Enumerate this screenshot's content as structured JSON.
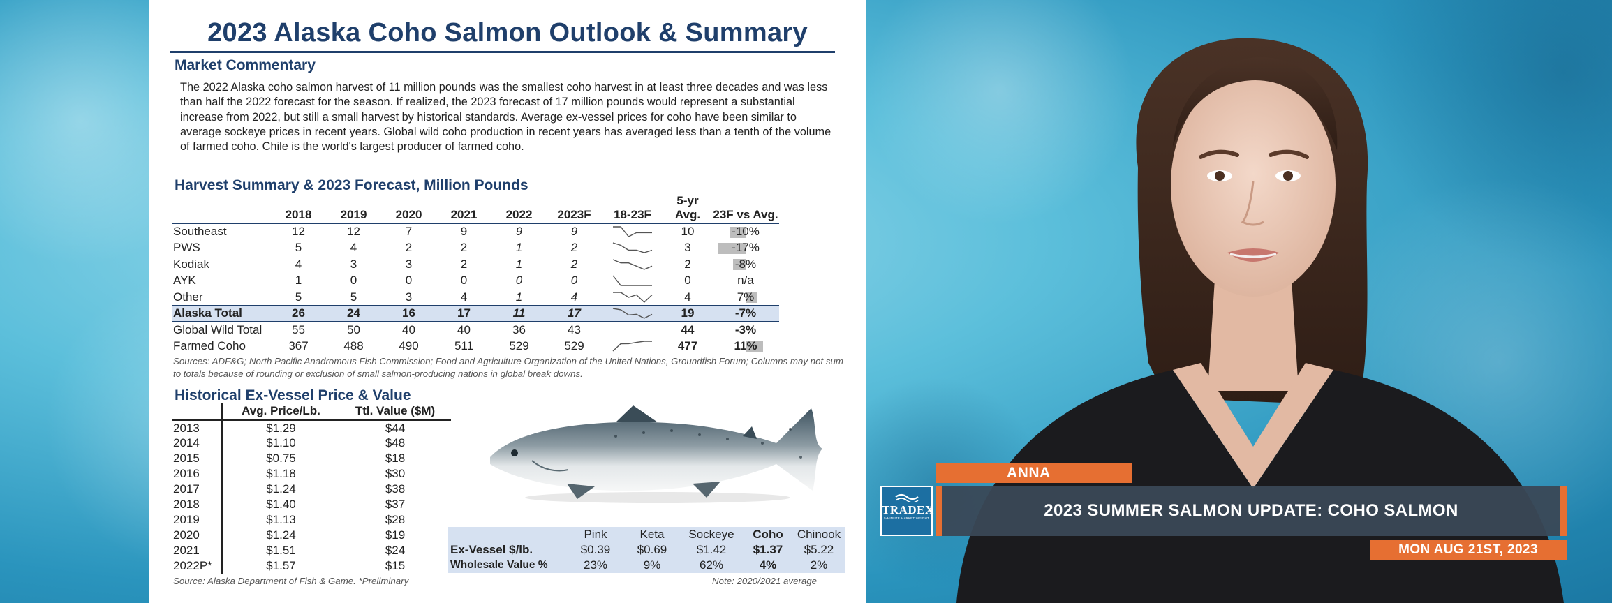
{
  "slide": {
    "title": "2023 Alaska Coho Salmon Outlook & Summary",
    "market_heading": "Market Commentary",
    "commentary": "The 2022 Alaska coho salmon harvest of 11 million pounds was the smallest coho harvest in at least three decades and was less than half the 2022 forecast for the season. If realized, the 2023 forecast of 17 million pounds would represent a substantial increase from 2022, but still a small harvest by historical standards. Average ex-vessel prices for coho have been similar to average sockeye prices in recent years. Global wild coho production in recent years has averaged less than a tenth of the volume of farmed coho. Chile is the world's largest producer of farmed coho.",
    "harvest_heading": "Harvest Summary & 2023 Forecast, Million Pounds",
    "harvest_columns": [
      "2018",
      "2019",
      "2020",
      "2021",
      "2022",
      "2023F",
      "18-23F",
      "5-yr Avg.",
      "23F vs Avg."
    ],
    "harvest_rows": [
      {
        "region": "Southeast",
        "values": [
          "12",
          "12",
          "7",
          "9",
          "9",
          "9"
        ],
        "spark": [
          12,
          12,
          7,
          9,
          9,
          9
        ],
        "avg": "10",
        "vs": "-10%",
        "vs_fraction": -0.1
      },
      {
        "region": "PWS",
        "values": [
          "5",
          "4",
          "2",
          "2",
          "1",
          "2"
        ],
        "spark": [
          5,
          4,
          2,
          2,
          1,
          2
        ],
        "avg": "3",
        "vs": "-17%",
        "vs_fraction": -0.17
      },
      {
        "region": "Kodiak",
        "values": [
          "4",
          "3",
          "3",
          "2",
          "1",
          "2"
        ],
        "spark": [
          4,
          3,
          3,
          2,
          1,
          2
        ],
        "avg": "2",
        "vs": "-8%",
        "vs_fraction": -0.08
      },
      {
        "region": "AYK",
        "values": [
          "1",
          "0",
          "0",
          "0",
          "0",
          "0"
        ],
        "spark": [
          1,
          0,
          0,
          0,
          0,
          0
        ],
        "avg": "0",
        "vs": "n/a",
        "vs_fraction": 0
      },
      {
        "region": "Other",
        "values": [
          "5",
          "5",
          "3",
          "4",
          "1",
          "4"
        ],
        "spark": [
          5,
          5,
          3,
          4,
          1,
          4
        ],
        "avg": "4",
        "vs": "7%",
        "vs_fraction": 0.07
      },
      {
        "region": "Alaska Total",
        "values": [
          "26",
          "24",
          "16",
          "17",
          "11",
          "17"
        ],
        "spark": [
          26,
          24,
          16,
          17,
          11,
          17
        ],
        "avg": "19",
        "vs": "-7%",
        "vs_fraction": -0.07
      },
      {
        "region": "Global Wild Total",
        "values": [
          "55",
          "50",
          "40",
          "40",
          "36",
          "43"
        ],
        "spark": [],
        "avg": "44",
        "vs": "-3%",
        "vs_fraction": -0.03
      },
      {
        "region": "Farmed Coho",
        "values": [
          "367",
          "488",
          "490",
          "511",
          "529",
          "529"
        ],
        "spark": [
          367,
          488,
          490,
          511,
          529,
          529
        ],
        "avg": "477",
        "vs": "11%",
        "vs_fraction": 0.11
      }
    ],
    "sources": "Sources: ADF&G; North Pacific Anadromous Fish Commission; Food and Agriculture Organization of the United Nations, Groundfish Forum; Columns may not sum to totals because of rounding or exclusion of small salmon-producing nations in global break downs.",
    "price_heading": "Historical Ex-Vessel Price & Value",
    "price_columns": [
      "",
      "Avg. Price/Lb.",
      "Ttl. Value ($M)"
    ],
    "price_rows": [
      [
        "2013",
        "$1.29",
        "$44"
      ],
      [
        "2014",
        "$1.10",
        "$48"
      ],
      [
        "2015",
        "$0.75",
        "$18"
      ],
      [
        "2016",
        "$1.18",
        "$30"
      ],
      [
        "2017",
        "$1.24",
        "$38"
      ],
      [
        "2018",
        "$1.40",
        "$37"
      ],
      [
        "2019",
        "$1.13",
        "$28"
      ],
      [
        "2020",
        "$1.24",
        "$19"
      ],
      [
        "2021",
        "$1.51",
        "$24"
      ],
      [
        "2022P*",
        "$1.57",
        "$15"
      ]
    ],
    "price_source": "Source: Alaska Department of Fish & Game. *Preliminary",
    "species_columns": [
      "Pink",
      "Keta",
      "Sockeye",
      "Coho",
      "Chinook"
    ],
    "ex_vessel_label": "Ex-Vessel $/lb.",
    "ex_vessel_values": [
      "$0.39",
      "$0.69",
      "$1.42",
      "$1.37",
      "$5.22"
    ],
    "wholesale_label": "Wholesale Value %",
    "wholesale_values": [
      "23%",
      "9%",
      "62%",
      "4%",
      "2%"
    ],
    "note": "Note: 2020/2021 average"
  },
  "lower_third": {
    "name": "ANNA",
    "logo_text": "TRADEX",
    "logo_subtext": "5-MINUTE MARKET WEIGHT",
    "headline": "2023 SUMMER SALMON UPDATE: COHO SALMON",
    "date": "MON AUG 21ST, 2023"
  },
  "colors": {
    "accent_orange": "#e66f32",
    "title_navy": "#1f3f6b",
    "highlight_row": "#d6e1f1",
    "logo_blue": "#1c6fa2"
  }
}
